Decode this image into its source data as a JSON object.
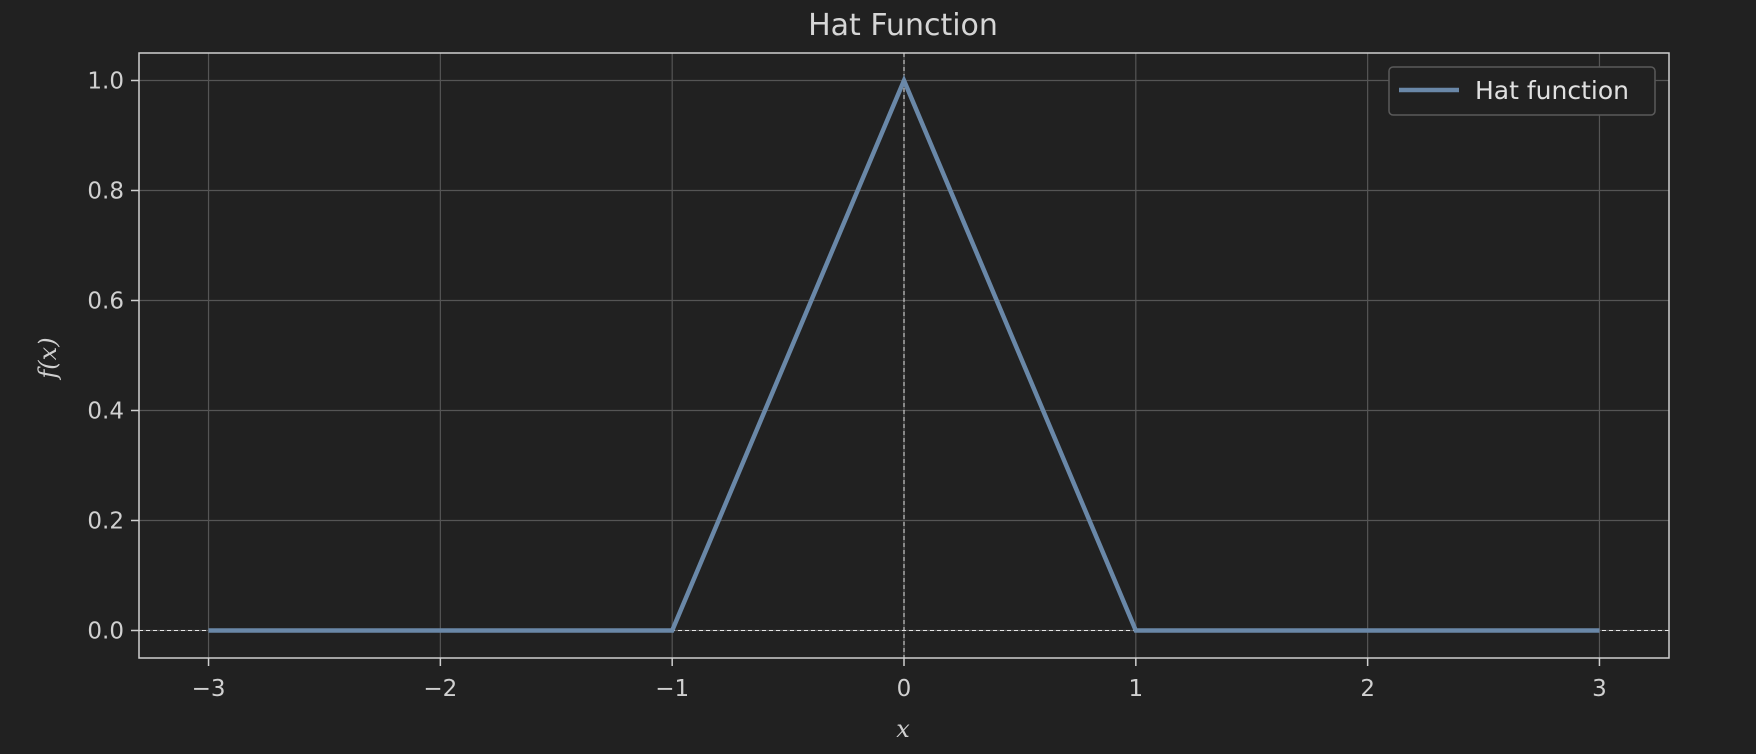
{
  "chart_data": {
    "type": "line",
    "title": "Hat Function",
    "xlabel": "x",
    "ylabel": "f(x)",
    "xlim": [
      -3.3,
      3.3
    ],
    "ylim": [
      -0.05,
      1.05
    ],
    "xticks": [
      -3,
      -2,
      -1,
      0,
      1,
      2,
      3
    ],
    "xtick_labels": [
      "−3",
      "−2",
      "−1",
      "0",
      "1",
      "2",
      "3"
    ],
    "yticks": [
      0.0,
      0.2,
      0.4,
      0.6,
      0.8,
      1.0
    ],
    "ytick_labels": [
      "0.0",
      "0.2",
      "0.4",
      "0.6",
      "0.8",
      "1.0"
    ],
    "grid": true,
    "legend_position": "top-right",
    "reference_lines": {
      "horizontal_y": 0,
      "vertical_x": 0,
      "style": "dashed"
    },
    "series": [
      {
        "name": "Hat function",
        "color": "#6a88a8",
        "x": [
          -3,
          -1,
          0,
          1,
          3
        ],
        "y": [
          0,
          0,
          1,
          0,
          0
        ]
      }
    ],
    "colors": {
      "background": "#212121",
      "grid": "#555555",
      "axes": "#cfcfcf",
      "text": "#d0d0d0"
    }
  }
}
